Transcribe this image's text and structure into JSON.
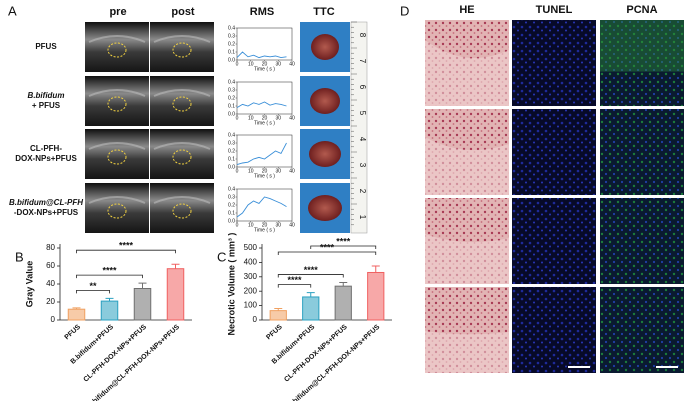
{
  "panel_a": {
    "label": "A",
    "columns": [
      "pre",
      "post",
      "RMS",
      "TTC"
    ],
    "rows": [
      [
        "PFUS"
      ],
      [
        "B.bifidum",
        "+ PFUS"
      ],
      [
        "CL-PFH-",
        "DOX-NPs+PFUS"
      ],
      [
        "B.bifidum@CL-PFH",
        "-DOX-NPs+PFUS"
      ]
    ],
    "ruler": [
      "8",
      "7",
      "6",
      "5",
      "4",
      "3",
      "2",
      "1"
    ]
  },
  "panel_d": {
    "label": "D",
    "columns": [
      "HE",
      "TUNEL",
      "PCNA"
    ]
  },
  "chart_data": [
    {
      "type": "line",
      "x_label": "Time ( s )",
      "x": [
        0,
        4,
        8,
        12,
        16,
        20,
        24,
        28,
        32,
        36
      ],
      "xlim": [
        0,
        40
      ],
      "xticks": [
        0,
        10,
        20,
        30,
        40
      ],
      "ylim": [
        0,
        0.4
      ],
      "yticks": [
        {
          "value": 0,
          "label": "0.0"
        },
        0.1,
        0.2,
        0.3,
        0.4
      ],
      "series": [
        {
          "color": "#3a8fd8",
          "values": [
            0.03,
            0.1,
            0.04,
            0.06,
            0.03,
            0.05,
            0.04,
            0.05,
            0.03,
            0.04
          ]
        }
      ]
    },
    {
      "type": "line",
      "x_label": "Time ( s )",
      "x": [
        0,
        4,
        8,
        12,
        16,
        20,
        24,
        28,
        32,
        36
      ],
      "xlim": [
        0,
        40
      ],
      "xticks": [
        0,
        10,
        20,
        30,
        40
      ],
      "ylim": [
        0,
        0.4
      ],
      "yticks": [
        {
          "value": 0,
          "label": "0.0"
        },
        0.1,
        0.2,
        0.3,
        0.4
      ],
      "series": [
        {
          "color": "#3a8fd8",
          "values": [
            0.08,
            0.12,
            0.1,
            0.14,
            0.12,
            0.15,
            0.11,
            0.13,
            0.12,
            0.1
          ]
        }
      ]
    },
    {
      "type": "line",
      "x_label": "Time ( s )",
      "x": [
        0,
        4,
        8,
        12,
        16,
        20,
        24,
        28,
        32,
        36
      ],
      "xlim": [
        0,
        40
      ],
      "xticks": [
        0,
        10,
        20,
        30,
        40
      ],
      "ylim": [
        0,
        0.4
      ],
      "yticks": [
        {
          "value": 0,
          "label": "0.0"
        },
        0.1,
        0.2,
        0.3,
        0.4
      ],
      "series": [
        {
          "color": "#3a8fd8",
          "values": [
            0.03,
            0.05,
            0.06,
            0.1,
            0.12,
            0.1,
            0.15,
            0.2,
            0.17,
            0.3
          ]
        }
      ]
    },
    {
      "type": "line",
      "x_label": "Time ( s )",
      "x": [
        0,
        4,
        8,
        12,
        16,
        20,
        24,
        28,
        32,
        36
      ],
      "xlim": [
        0,
        40
      ],
      "xticks": [
        0,
        10,
        20,
        30,
        40
      ],
      "ylim": [
        0,
        0.4
      ],
      "yticks": [
        {
          "value": 0,
          "label": "0.0"
        },
        0.1,
        0.2,
        0.3,
        0.4
      ],
      "series": [
        {
          "color": "#3a8fd8",
          "values": [
            0.05,
            0.1,
            0.2,
            0.25,
            0.22,
            0.3,
            0.28,
            0.25,
            0.22,
            0.18
          ]
        }
      ]
    },
    {
      "type": "bar",
      "label": "B",
      "y_label": "Gray Value",
      "categories": [
        "PFUS",
        "B.bifidum+PFUS",
        "CL-PFH-DOX-NPs+PFUS",
        "B.bifidum@CL-PFH-DOX-NPs+PFUS"
      ],
      "values": [
        12,
        21,
        35,
        57
      ],
      "errors": [
        1.5,
        3,
        6,
        5
      ],
      "colors": [
        "#f0a060",
        "#2aa0c0",
        "#707070",
        "#f06060"
      ],
      "ylim": [
        0,
        80
      ],
      "yticks": [
        0,
        20,
        40,
        60,
        80
      ],
      "significance": [
        "**",
        "****",
        "****"
      ]
    },
    {
      "type": "bar",
      "label": "C",
      "y_label": "Necrotic Volume ( mm³ )",
      "categories": [
        "PFUS",
        "B.bifidum+PFUS",
        "CL-PFH-DOX-NPs+PFUS",
        "B.bifidum@CL-PFH-DOX-NPs+PFUS"
      ],
      "values": [
        65,
        160,
        235,
        330
      ],
      "errors": [
        15,
        30,
        25,
        45
      ],
      "colors": [
        "#f0a060",
        "#2aa0c0",
        "#707070",
        "#f06060"
      ],
      "ylim": [
        0,
        500
      ],
      "yticks": [
        0,
        100,
        200,
        300,
        400,
        500
      ],
      "significance": [
        "****",
        "****",
        "****",
        "****"
      ]
    }
  ]
}
